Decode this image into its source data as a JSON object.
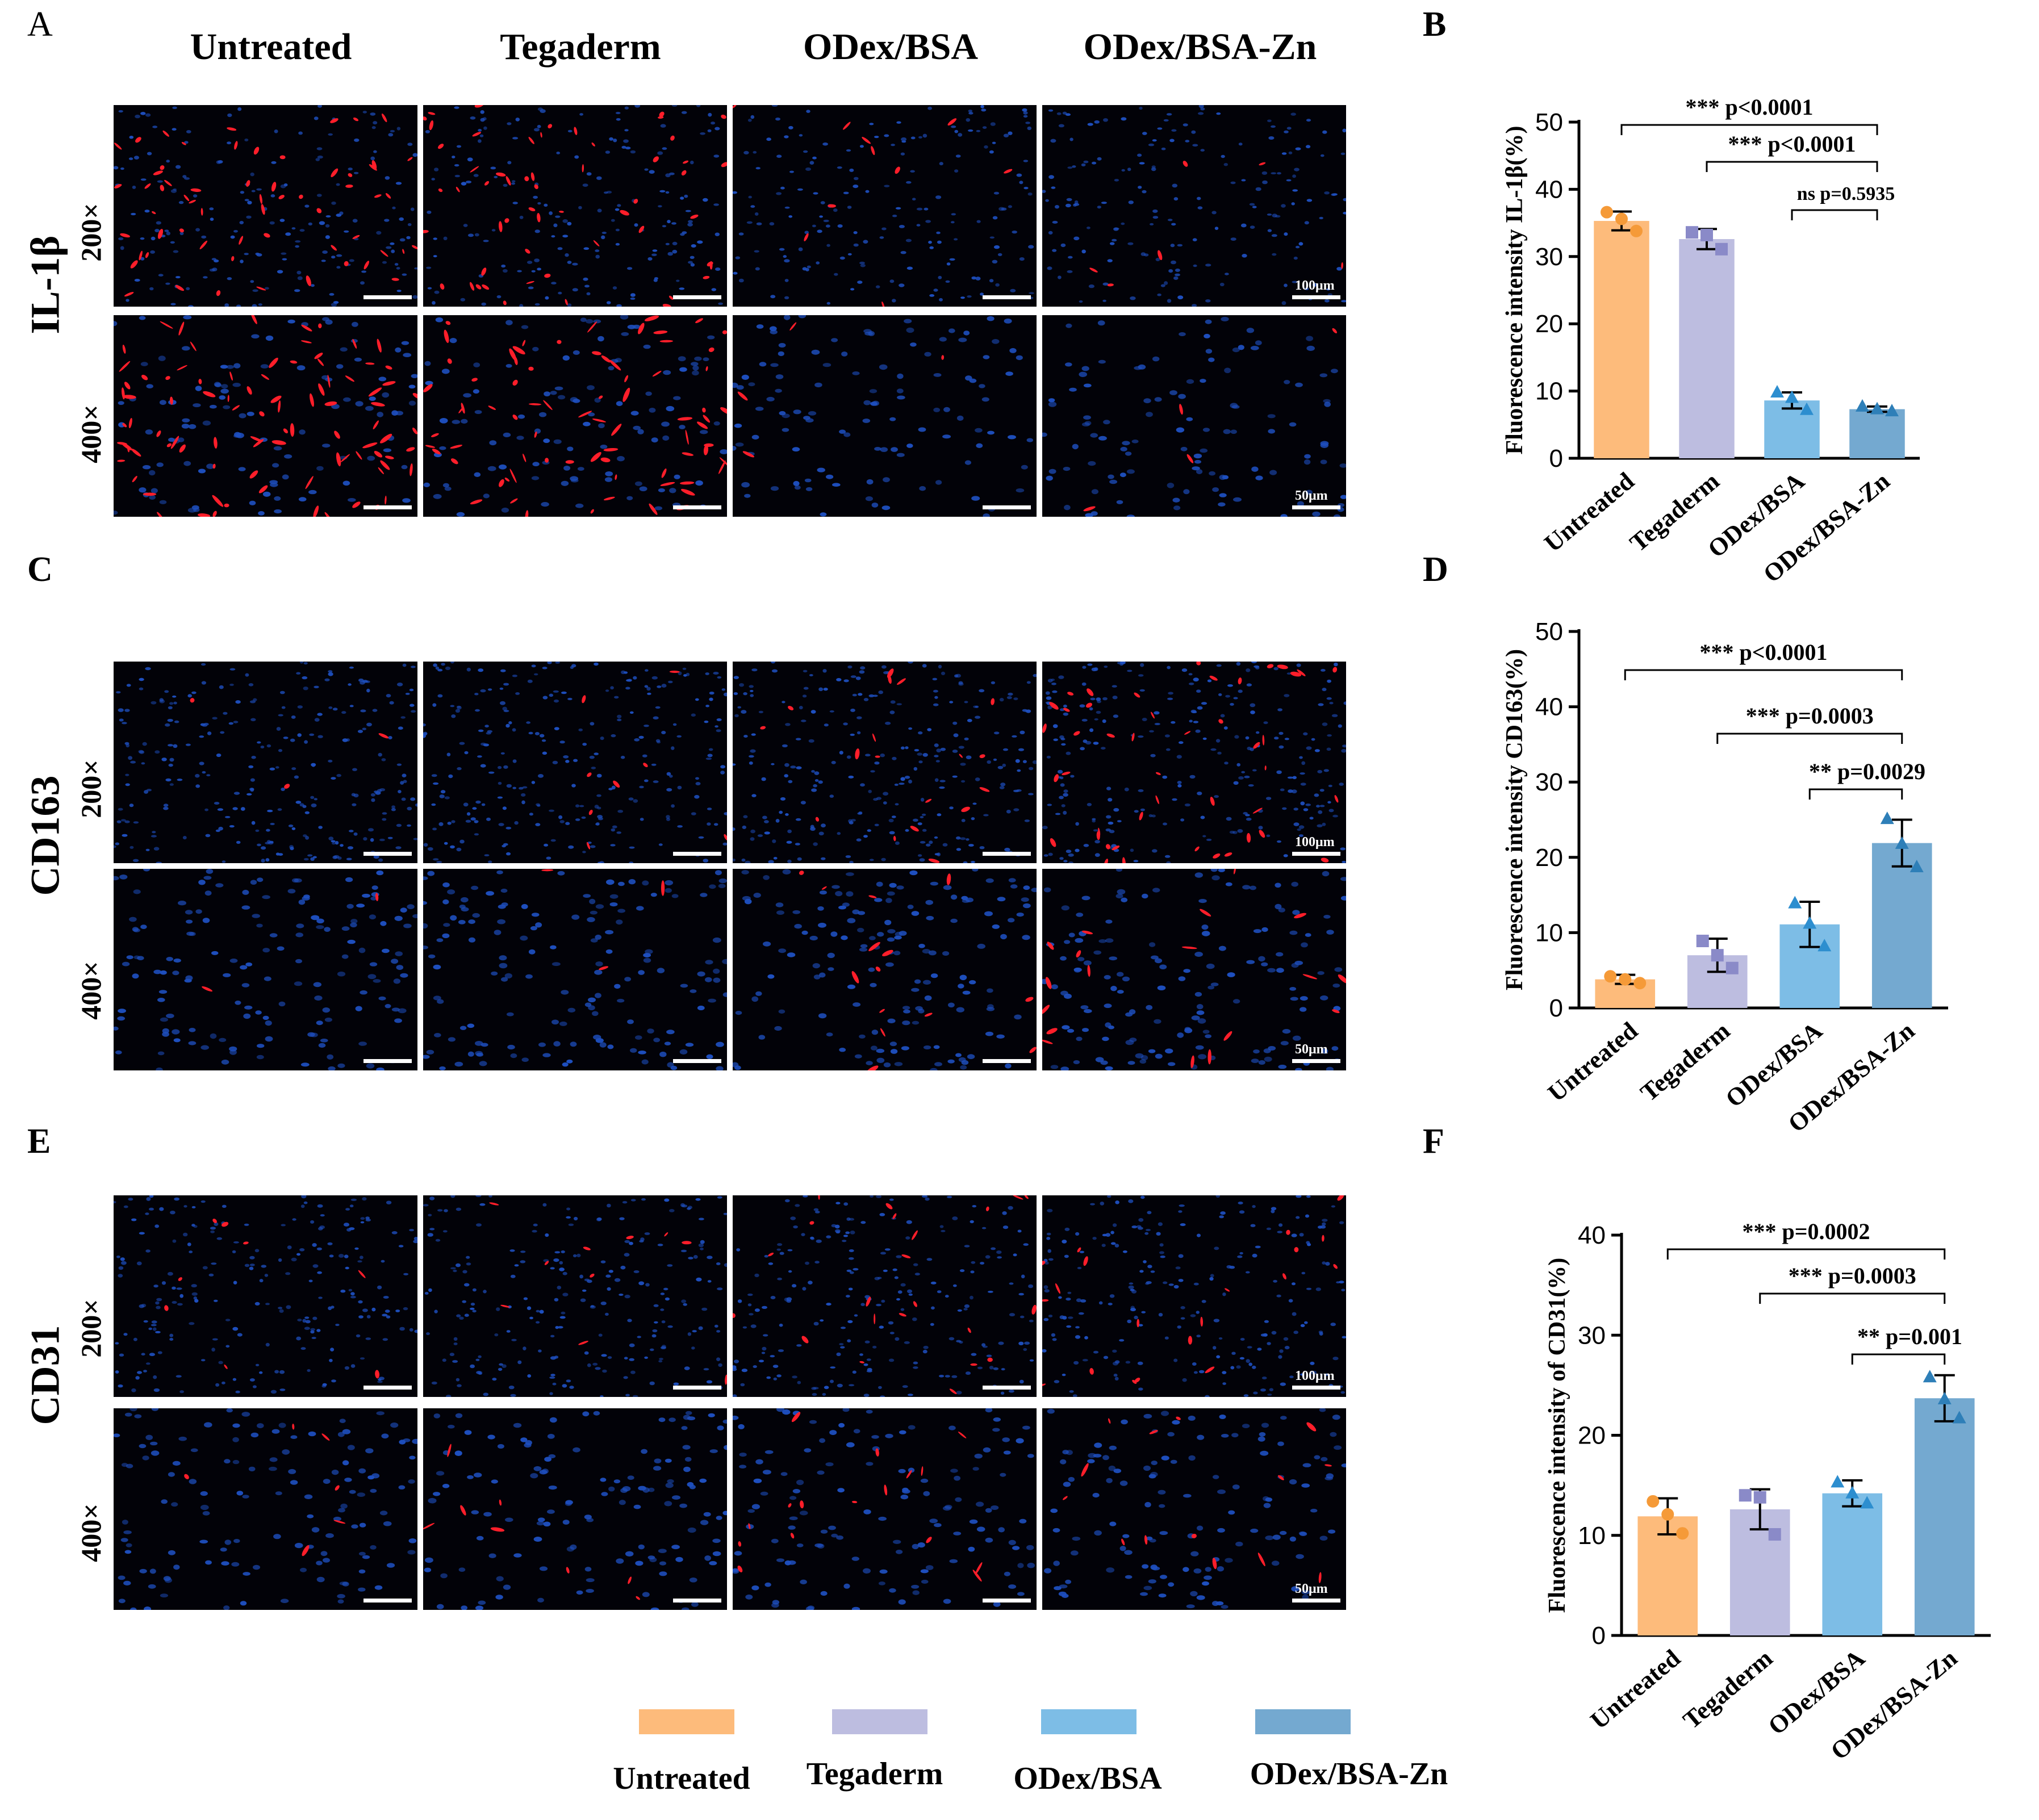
{
  "panel_letters": {
    "a": "A",
    "b": "B",
    "c": "C",
    "d": "D",
    "e": "E",
    "f": "F"
  },
  "column_headers": [
    "Untreated",
    "Tegaderm",
    "ODex/BSA",
    "ODex/BSA-Zn"
  ],
  "row_groups": [
    {
      "label": "IL-1β",
      "mags": [
        "200×",
        "400×"
      ],
      "scale_200": "100μm",
      "scale_400": "50μm"
    },
    {
      "label": "CD163",
      "mags": [
        "200×",
        "400×"
      ],
      "scale_200": "100μm",
      "scale_400": "50μm"
    },
    {
      "label": "CD31",
      "mags": [
        "200×",
        "400×"
      ],
      "scale_200": "100μm",
      "scale_400": "50μm"
    }
  ],
  "colors": {
    "Untreated": "#FDBB7B",
    "Tegaderm": "#BDBDE0",
    "ODex/BSA": "#7DBDE6",
    "ODex/BSA-Zn": "#74A9D0",
    "point_Untreated": "#F59A38",
    "point_Tegaderm": "#8A8AC8",
    "point_ODex/BSA": "#2D8ECF",
    "point_ODex/BSA-Zn": "#2E7FB8",
    "red_signal": "#FF1E2A",
    "blue_nuclei": "#1E4FBF"
  },
  "legend": [
    "Untreated",
    "Tegaderm",
    "ODex/BSA",
    "ODex/BSA-Zn"
  ],
  "chart_data": [
    {
      "type": "bar",
      "panel": "B",
      "categories": [
        "Untreated",
        "Tegaderm",
        "ODex/BSA",
        "ODex/BSA-Zn"
      ],
      "values": [
        35.3,
        32.6,
        8.6,
        7.3
      ],
      "errors": [
        1.4,
        1.5,
        1.2,
        0.4
      ],
      "points": [
        [
          36.6,
          35.6,
          33.8
        ],
        [
          33.6,
          33.2,
          31.1
        ],
        [
          9.8,
          9.0,
          7.2
        ],
        [
          7.7,
          7.3,
          7.0
        ]
      ],
      "ylabel": "Fluorescence intensity IL-1β(%)",
      "ylim": [
        0,
        50
      ],
      "yticks": [
        0,
        10,
        20,
        30,
        40,
        50
      ],
      "annotations": [
        {
          "from": 0,
          "to": 3,
          "label": "*** p<0.0001"
        },
        {
          "from": 1,
          "to": 3,
          "label": "*** p<0.0001"
        },
        {
          "from": 2,
          "to": 3,
          "label": "ns p=0.5935"
        }
      ]
    },
    {
      "type": "bar",
      "panel": "D",
      "categories": [
        "Untreated",
        "Tegaderm",
        "ODex/BSA",
        "ODex/BSA-Zn"
      ],
      "values": [
        3.8,
        7.0,
        11.1,
        21.9
      ],
      "errors": [
        0.6,
        2.2,
        3.0,
        3.1
      ],
      "points": [
        [
          4.2,
          3.8,
          3.3
        ],
        [
          8.9,
          7.0,
          5.3
        ],
        [
          13.9,
          11.2,
          8.2
        ],
        [
          25.1,
          21.8,
          18.7
        ]
      ],
      "ylabel": "Fluorescence intensity CD163(%)",
      "ylim": [
        0,
        50
      ],
      "yticks": [
        0,
        10,
        20,
        30,
        40,
        50
      ],
      "annotations": [
        {
          "from": 0,
          "to": 3,
          "label": "*** p<0.0001"
        },
        {
          "from": 1,
          "to": 3,
          "label": "*** p=0.0003"
        },
        {
          "from": 2,
          "to": 3,
          "label": "** p=0.0029"
        }
      ]
    },
    {
      "type": "bar",
      "panel": "F",
      "categories": [
        "Untreated",
        "Tegaderm",
        "ODex/BSA",
        "ODex/BSA-Zn"
      ],
      "values": [
        11.9,
        12.6,
        14.2,
        23.7
      ],
      "errors": [
        1.8,
        2.0,
        1.3,
        2.3
      ],
      "points": [
        [
          13.4,
          12.1,
          10.2
        ],
        [
          14.0,
          13.8,
          10.1
        ],
        [
          15.3,
          14.2,
          13.2
        ],
        [
          25.8,
          23.6,
          21.7
        ]
      ],
      "ylabel": "Fluorescence intensity of CD31(%)",
      "ylim": [
        0,
        40
      ],
      "yticks": [
        0,
        10,
        20,
        30,
        40
      ],
      "annotations": [
        {
          "from": 0,
          "to": 3,
          "label": "*** p=0.0002"
        },
        {
          "from": 1,
          "to": 3,
          "label": "*** p=0.0003"
        },
        {
          "from": 2,
          "to": 3,
          "label": "** p=0.001"
        }
      ]
    }
  ]
}
